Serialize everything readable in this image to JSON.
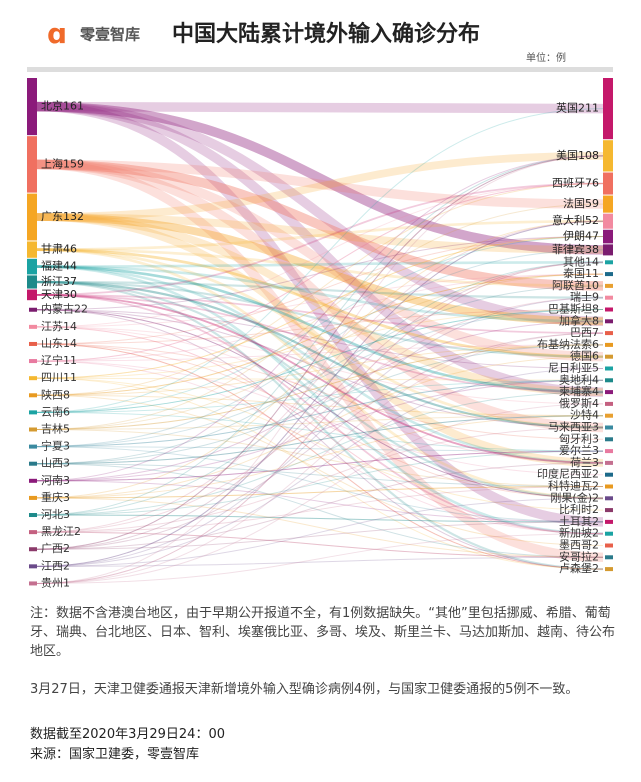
{
  "brand": "零壹智库",
  "chart_data": {
    "type": "sankey",
    "title": "中国大陆累计境外输入确诊分布",
    "unit": "单位：例",
    "left_nodes": [
      {
        "name": "北京",
        "value": 161,
        "color": "#8b1a7a"
      },
      {
        "name": "上海",
        "value": 159,
        "color": "#f07060"
      },
      {
        "name": "广东",
        "value": 132,
        "color": "#f5a623"
      },
      {
        "name": "甘肃",
        "value": 46,
        "color": "#f5b830"
      },
      {
        "name": "福建",
        "value": 44,
        "color": "#1ba3a3"
      },
      {
        "name": "浙江",
        "value": 37,
        "color": "#1d8a8a"
      },
      {
        "name": "天津",
        "value": 30,
        "color": "#c4186a"
      },
      {
        "name": "内蒙古",
        "value": 22,
        "color": "#7a1c6e"
      },
      {
        "name": "江苏",
        "value": 14,
        "color": "#f28aa0"
      },
      {
        "name": "山东",
        "value": 14,
        "color": "#e8604a"
      },
      {
        "name": "辽宁",
        "value": 11,
        "color": "#e87aa0"
      },
      {
        "name": "四川",
        "value": 11,
        "color": "#f5b830"
      },
      {
        "name": "陕西",
        "value": 8,
        "color": "#e89a20"
      },
      {
        "name": "云南",
        "value": 6,
        "color": "#1ba3a3"
      },
      {
        "name": "吉林",
        "value": 5,
        "color": "#d49a30"
      },
      {
        "name": "宁夏",
        "value": 3,
        "color": "#3a8aa0"
      },
      {
        "name": "山西",
        "value": 3,
        "color": "#2a7a8a"
      },
      {
        "name": "河南",
        "value": 3,
        "color": "#8b1a7a"
      },
      {
        "name": "重庆",
        "value": 3,
        "color": "#e89a20"
      },
      {
        "name": "河北",
        "value": 3,
        "color": "#1d8a8a"
      },
      {
        "name": "黑龙江",
        "value": 2,
        "color": "#c46080"
      },
      {
        "name": "广西",
        "value": 2,
        "color": "#8b3a6a"
      },
      {
        "name": "江西",
        "value": 2,
        "color": "#6a4a8a"
      },
      {
        "name": "贵州",
        "value": 1,
        "color": "#c47090"
      }
    ],
    "right_nodes": [
      {
        "name": "英国",
        "value": 211,
        "color": "#c4186a"
      },
      {
        "name": "美国",
        "value": 108,
        "color": "#f5b830"
      },
      {
        "name": "西班牙",
        "value": 76,
        "color": "#f07060"
      },
      {
        "name": "法国",
        "value": 59,
        "color": "#f5a623"
      },
      {
        "name": "意大利",
        "value": 52,
        "color": "#f28aa0"
      },
      {
        "name": "伊朗",
        "value": 47,
        "color": "#8b1a7a"
      },
      {
        "name": "菲律宾",
        "value": 38,
        "color": "#7a1c6e"
      },
      {
        "name": "其他",
        "value": 14,
        "color": "#1ba3a3"
      },
      {
        "name": "泰国",
        "value": 11,
        "color": "#1d6a8a"
      },
      {
        "name": "阿联酋",
        "value": 10,
        "color": "#e8a030"
      },
      {
        "name": "瑞士",
        "value": 9,
        "color": "#f28aa0"
      },
      {
        "name": "巴基斯坦",
        "value": 8,
        "color": "#c4186a"
      },
      {
        "name": "加拿大",
        "value": 8,
        "color": "#7a1c6e"
      },
      {
        "name": "巴西",
        "value": 7,
        "color": "#e8604a"
      },
      {
        "name": "布基纳法索",
        "value": 6,
        "color": "#e89a20"
      },
      {
        "name": "德国",
        "value": 6,
        "color": "#d49a30"
      },
      {
        "name": "尼日利亚",
        "value": 5,
        "color": "#1ba3a3"
      },
      {
        "name": "奥地利",
        "value": 4,
        "color": "#1d8a8a"
      },
      {
        "name": "柬埔寨",
        "value": 4,
        "color": "#8b1a7a"
      },
      {
        "name": "俄罗斯",
        "value": 4,
        "color": "#c46080"
      },
      {
        "name": "沙特",
        "value": 4,
        "color": "#e8a030"
      },
      {
        "name": "马来西亚",
        "value": 3,
        "color": "#3a8aa0"
      },
      {
        "name": "匈牙利",
        "value": 3,
        "color": "#2a7a8a"
      },
      {
        "name": "爱尔兰",
        "value": 3,
        "color": "#e87aa0"
      },
      {
        "name": "荷兰",
        "value": 3,
        "color": "#c47090"
      },
      {
        "name": "印度尼西亚",
        "value": 2,
        "color": "#1d6a8a"
      },
      {
        "name": "科特迪瓦",
        "value": 2,
        "color": "#e89a20"
      },
      {
        "name": "刚果(金)",
        "value": 2,
        "color": "#6a4a8a"
      },
      {
        "name": "比利时",
        "value": 2,
        "color": "#8b3a6a"
      },
      {
        "name": "土耳其",
        "value": 2,
        "color": "#c4186a"
      },
      {
        "name": "新加坡",
        "value": 2,
        "color": "#1ba3a3"
      },
      {
        "name": "墨西哥",
        "value": 2,
        "color": "#e8604a"
      },
      {
        "name": "安哥拉",
        "value": 2,
        "color": "#2a7a8a"
      },
      {
        "name": "卢森堡",
        "value": 2,
        "color": "#d49a30"
      }
    ]
  },
  "notes": {
    "note": "注：数据不含港澳台地区，由于早期公开报道不全，有1例数据缺失。“其他”里包括挪威、希腊、葡萄牙、瑞典、台北地区、日本、智利、埃塞俄比亚、多哥、埃及、斯里兰卡、马达加斯加、越南、待公布地区。",
    "tianjin": "3月27日，天津卫健委通报天津新增境外输入型确诊病例4例，与国家卫健委通报的5例不一致。",
    "date": "数据截至2020年3月29日24：00",
    "source": "来源：国家卫建委，零壹智库"
  }
}
